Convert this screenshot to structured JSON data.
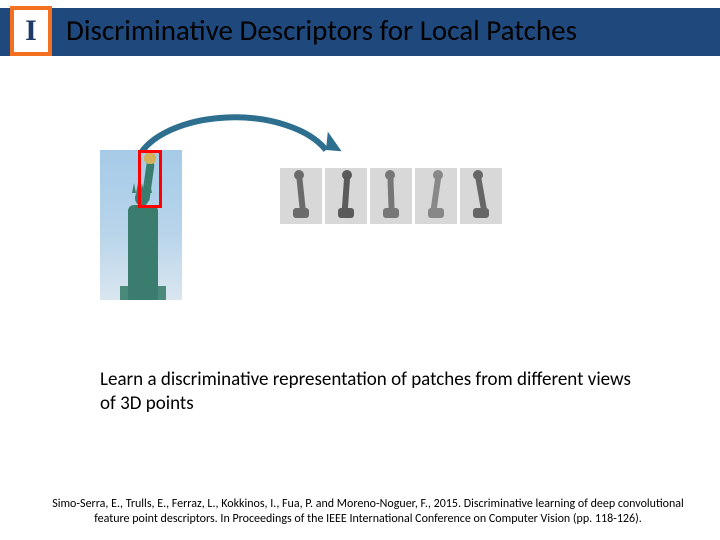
{
  "header": {
    "title": "Discriminative Descriptors for Local Patches",
    "bar_color": "#1f497d",
    "logo_border": "#f37021",
    "logo_letter": "I",
    "logo_letter_color": "#1f3a66"
  },
  "figure": {
    "arrow": {
      "stroke": "#2e6e8e",
      "fill_head": "#2e6e8e",
      "stroke_width": 5
    },
    "statue": {
      "highlight_box_color": "#ff0000",
      "sky_gradient_top": "#a6cbe8",
      "sky_gradient_bottom": "#d9e6f0",
      "statue_color": "#3a7d6e",
      "torch_color": "#d4b05a"
    },
    "patches": {
      "count": 5,
      "bg": "#d8d8d8",
      "variants": [
        {
          "shade": "#6b6b6b",
          "rot": -6
        },
        {
          "shade": "#5a5a5a",
          "rot": 4
        },
        {
          "shade": "#777777",
          "rot": -2
        },
        {
          "shade": "#888888",
          "rot": 8
        },
        {
          "shade": "#666666",
          "rot": -10
        }
      ]
    }
  },
  "caption": "Learn a discriminative representation of patches from different views of 3D points",
  "citation": {
    "line1": "Simo-Serra, E., Trulls, E., Ferraz, L., Kokkinos, I., Fua, P. and Moreno-Noguer, F., 2015. Discriminative learning of deep convolutional",
    "line2": "feature point descriptors. In Proceedings of the IEEE International Conference on Computer Vision (pp. 118-126)."
  },
  "typography": {
    "title_fontsize": 29,
    "caption_fontsize": 19,
    "citation_fontsize": 12
  }
}
